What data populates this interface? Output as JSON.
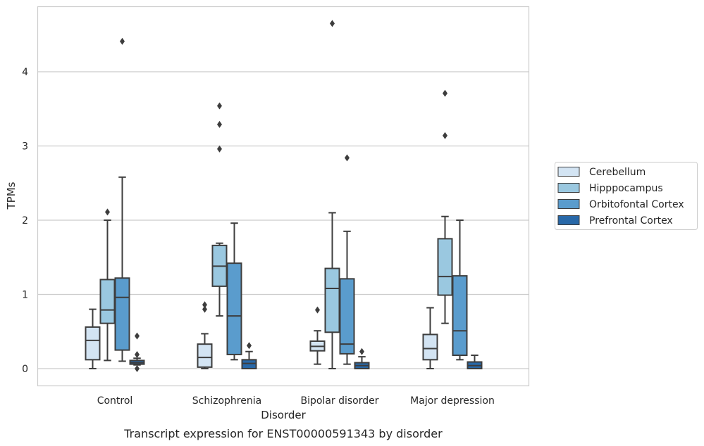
{
  "chart_data": {
    "type": "box",
    "title": "",
    "caption": "Transcript expression for ENST00000591343 by disorder",
    "xlabel": "Disorder",
    "ylabel": "TPMs",
    "ylim": [
      -0.22,
      4.9
    ],
    "yticks": [
      0,
      1,
      2,
      3,
      4
    ],
    "grid": "horizontal",
    "legend_position": "right",
    "categories": [
      "Control",
      "Schizophrenia",
      "Bipolar disorder",
      "Major depression"
    ],
    "series": [
      {
        "name": "Cerebellum",
        "color": "#d3e4f3",
        "boxes": [
          {
            "whisker_low": 0.0,
            "q1": 0.12,
            "median": 0.38,
            "q3": 0.56,
            "whisker_high": 0.8,
            "outliers": []
          },
          {
            "whisker_low": 0.0,
            "q1": 0.02,
            "median": 0.15,
            "q3": 0.33,
            "whisker_high": 0.47,
            "outliers": [
              0.8,
              0.86
            ]
          },
          {
            "whisker_low": 0.06,
            "q1": 0.24,
            "median": 0.3,
            "q3": 0.37,
            "whisker_high": 0.51,
            "outliers": [
              0.79
            ]
          },
          {
            "whisker_low": 0.0,
            "q1": 0.12,
            "median": 0.27,
            "q3": 0.46,
            "whisker_high": 0.82,
            "outliers": []
          }
        ]
      },
      {
        "name": "Hipppocampus",
        "color": "#9ac8e0",
        "boxes": [
          {
            "whisker_low": 0.11,
            "q1": 0.61,
            "median": 0.79,
            "q3": 1.2,
            "whisker_high": 2.0,
            "outliers": [
              2.11
            ]
          },
          {
            "whisker_low": 0.71,
            "q1": 1.11,
            "median": 1.38,
            "q3": 1.66,
            "whisker_high": 1.69,
            "outliers": [
              2.96,
              3.29,
              3.54
            ]
          },
          {
            "whisker_low": 0.0,
            "q1": 0.49,
            "median": 1.08,
            "q3": 1.35,
            "whisker_high": 2.1,
            "outliers": [
              4.65
            ]
          },
          {
            "whisker_low": 0.61,
            "q1": 0.99,
            "median": 1.24,
            "q3": 1.75,
            "whisker_high": 2.05,
            "outliers": [
              3.14,
              3.71
            ]
          }
        ]
      },
      {
        "name": "Orbitofontal Cortex",
        "color": "#5a9ccd",
        "boxes": [
          {
            "whisker_low": 0.1,
            "q1": 0.25,
            "median": 0.96,
            "q3": 1.22,
            "whisker_high": 2.58,
            "outliers": [
              4.41
            ]
          },
          {
            "whisker_low": 0.12,
            "q1": 0.19,
            "median": 0.71,
            "q3": 1.42,
            "whisker_high": 1.96,
            "outliers": []
          },
          {
            "whisker_low": 0.06,
            "q1": 0.2,
            "median": 0.33,
            "q3": 1.21,
            "whisker_high": 1.85,
            "outliers": [
              2.84
            ]
          },
          {
            "whisker_low": 0.12,
            "q1": 0.18,
            "median": 0.51,
            "q3": 1.25,
            "whisker_high": 2.0,
            "outliers": []
          }
        ]
      },
      {
        "name": "Prefrontal Cortex",
        "color": "#2868a8",
        "boxes": [
          {
            "whisker_low": 0.05,
            "q1": 0.06,
            "median": 0.08,
            "q3": 0.11,
            "whisker_high": 0.14,
            "outliers": [
              0.0,
              0.19,
              0.44
            ]
          },
          {
            "whisker_low": 0.0,
            "q1": 0.0,
            "median": 0.07,
            "q3": 0.12,
            "whisker_high": 0.23,
            "outliers": [
              0.31
            ]
          },
          {
            "whisker_low": 0.0,
            "q1": 0.0,
            "median": 0.04,
            "q3": 0.08,
            "whisker_high": 0.16,
            "outliers": [
              0.23
            ]
          },
          {
            "whisker_low": 0.0,
            "q1": 0.0,
            "median": 0.04,
            "q3": 0.09,
            "whisker_high": 0.18,
            "outliers": []
          }
        ]
      }
    ]
  },
  "colors": {
    "grid": "#cccccc",
    "frame": "#cccccc",
    "line": "#3d3d3d",
    "text": "#262626"
  }
}
